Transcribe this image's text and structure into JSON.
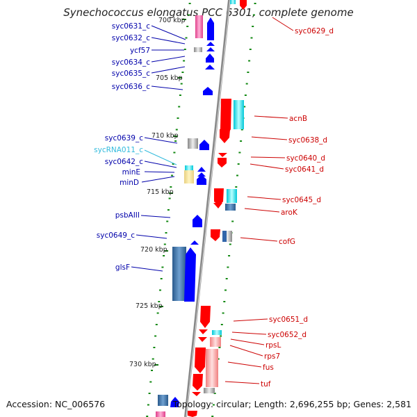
{
  "title": "Synechococcus elongatus PCC 6301, complete genome",
  "footer": {
    "accession": "Accession: NC_006576",
    "summary": "Topology: circular; Length: 2,696,255 bp; Genes: 2,581"
  },
  "colors": {
    "forward_label": "#cc0000",
    "reverse_label": "#0000aa",
    "rna_label": "#33bbdd",
    "forward_gene": "#ff0000",
    "reverse_gene": "#0000ff",
    "backbone": "#888888",
    "tick_dots": "#118811"
  },
  "scale_labels": [
    "700 kbp",
    "705 kbp",
    "710 kbp",
    "715 kbp",
    "720 kbp",
    "725 kbp",
    "730 kbp"
  ],
  "forward_labels": [
    "syc0629_d",
    "acnB",
    "syc0638_d",
    "syc0640_d",
    "syc0641_d",
    "syc0645_d",
    "aroK",
    "cofG",
    "syc0651_d",
    "syc0652_d",
    "rpsL",
    "rps7",
    "fus",
    "tuf"
  ],
  "reverse_labels": [
    "syc0631_c",
    "syc0632_c",
    "ycf57",
    "syc0634_c",
    "syc0635_c",
    "syc0636_c",
    "syc0639_c",
    "sycRNA011_c",
    "syc0642_c",
    "minE",
    "minD",
    "psbAIII",
    "syc0649_c",
    "glsF"
  ]
}
